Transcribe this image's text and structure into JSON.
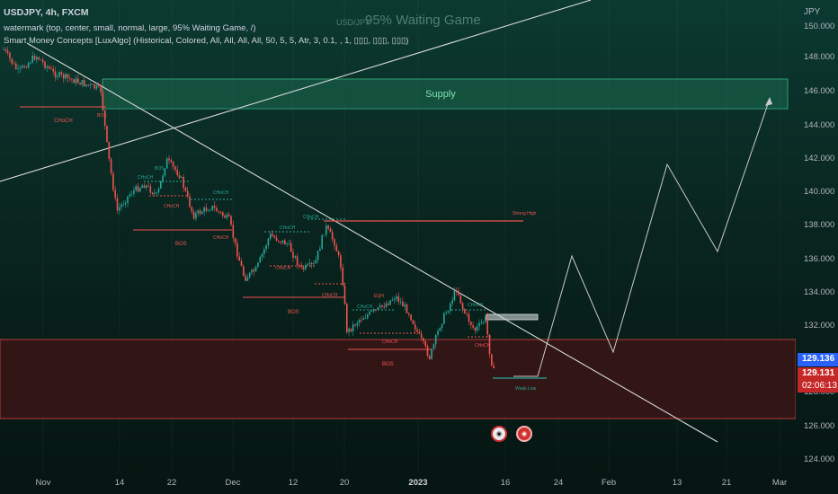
{
  "header": {
    "line1": "USDJPY, 4h, FXCM",
    "line2": "watermark (top, center, small, normal, large, 95% Waiting Game, /)",
    "line3": "Smart Money Concepts [LuxAlgo] (Historical, Colored, All, All, All, All, 50, 5, 5, Atr, 3, 0.1, , 1, ▯▯▯, ▯▯▯, ▯▯▯)"
  },
  "watermark": {
    "symbol": "USD/JPY",
    "text": "95% Waiting Game"
  },
  "currency": "JPY",
  "y_axis": [
    "150.000",
    "148.000",
    "146.000",
    "144.000",
    "142.000",
    "140.000",
    "138.000",
    "136.000",
    "134.000",
    "132.000",
    "128.000",
    "126.000",
    "124.000"
  ],
  "x_axis": [
    "Nov",
    "14",
    "22",
    "Dec",
    "12",
    "20",
    "2023",
    "16",
    "24",
    "Feb",
    "13",
    "21",
    "Mar"
  ],
  "price_tags": {
    "current": "129.136",
    "close": "129.131",
    "countdown": "02:06:13"
  },
  "zones": {
    "supply_label": "Supply",
    "strong_high": "Strong High",
    "weak_low": "Weak Low"
  },
  "structure_labels": {
    "choch": "CHoCH",
    "bos": "BOS",
    "eqh": "EQH"
  },
  "colors": {
    "bull": "#26a69a",
    "bear": "#ef5350",
    "supply": "#1b7a5a",
    "demand": "#3a1616"
  },
  "icons": [
    "alert-icon",
    "replay-icon"
  ]
}
